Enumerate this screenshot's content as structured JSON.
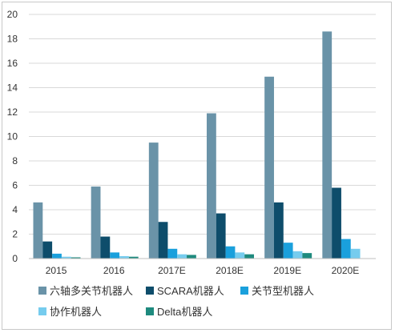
{
  "chart_data": {
    "type": "bar",
    "title": "",
    "xlabel": "",
    "ylabel": "",
    "categories": [
      "2015",
      "2016",
      "2017E",
      "2018E",
      "2019E",
      "2020E"
    ],
    "ylim": [
      0,
      20
    ],
    "yticks": [
      0,
      2,
      4,
      6,
      8,
      10,
      12,
      14,
      16,
      18,
      20
    ],
    "grid": true,
    "legend_position": "bottom",
    "series": [
      {
        "name": "六轴多关节机器人",
        "color": "#6a93a8",
        "values": [
          4.6,
          5.9,
          9.5,
          11.9,
          14.9,
          18.6
        ]
      },
      {
        "name": "SCARA机器人",
        "color": "#0e4d6b",
        "values": [
          1.4,
          1.8,
          3.0,
          3.7,
          4.6,
          5.8
        ]
      },
      {
        "name": "关节型机器人",
        "color": "#1aa0dc",
        "values": [
          0.4,
          0.5,
          0.8,
          1.0,
          1.3,
          1.6
        ]
      },
      {
        "name": "协作机器人",
        "color": "#76ccee",
        "values": [
          0.15,
          0.2,
          0.35,
          0.5,
          0.6,
          0.8
        ]
      },
      {
        "name": "Delta机器人",
        "color": "#1e8a7e",
        "values": [
          0.1,
          0.15,
          0.3,
          0.35,
          0.45,
          0.0
        ]
      }
    ]
  }
}
